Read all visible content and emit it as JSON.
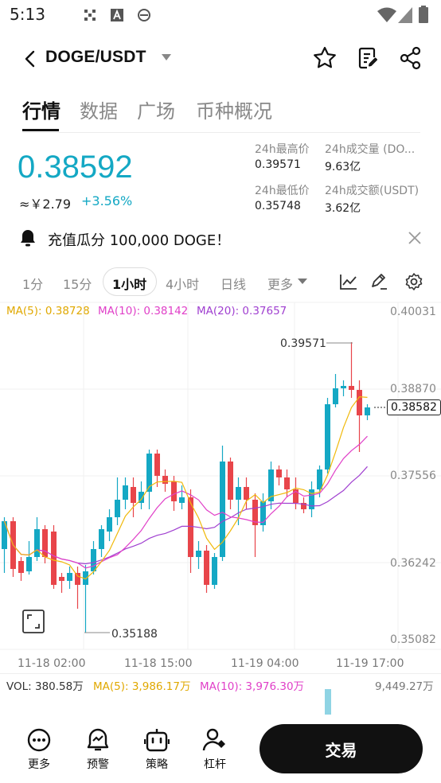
{
  "status_bar": {
    "time": "5:13"
  },
  "header": {
    "pair": "DOGE/USDT"
  },
  "tabs": [
    {
      "label": "行情"
    },
    {
      "label": "数据"
    },
    {
      "label": "广场"
    },
    {
      "label": "币种概况"
    }
  ],
  "ticker": {
    "last_price": "0.38592",
    "cny": "≈￥2.79",
    "change": "+3.56%",
    "stats": [
      {
        "label": "24h最高价",
        "value": "0.39571"
      },
      {
        "label": "24h成交量 (DO...",
        "value": "9.63亿"
      },
      {
        "label": "24h最低价",
        "value": "0.35748"
      },
      {
        "label": "24h成交额(USDT)",
        "value": "3.62亿"
      }
    ]
  },
  "banner": {
    "text": "充值瓜分 100,000 DOGE！"
  },
  "intervals": [
    {
      "label": "1分"
    },
    {
      "label": "15分"
    },
    {
      "label": "1小时",
      "selected": true
    },
    {
      "label": "4小时"
    },
    {
      "label": "日线"
    },
    {
      "label": "更多"
    }
  ],
  "indicators": {
    "ma5": "MA(5): 0.38728",
    "ma10": "MA(10): 0.38142",
    "ma20": "MA(20): 0.37657"
  },
  "chart_data": {
    "type": "candlestick",
    "y_ticks": [
      "0.40031",
      "0.38870",
      "0.37556",
      "0.36242",
      "0.35082"
    ],
    "x_ticks": [
      "11-18 02:00",
      "11-18 15:00",
      "11-19 04:00",
      "11-19 17:00"
    ],
    "high_marker": "0.39571",
    "low_marker": "0.35188",
    "current_price_tag": "0.38582",
    "colors": {
      "up": "#14a8c4",
      "down": "#e8454a",
      "ma5": "#f0b90b",
      "ma10": "#e040c8",
      "ma20": "#a040d0"
    }
  },
  "volume": {
    "vol": "VOL: 380.58万",
    "ma5": "MA(5): 3,986.17万",
    "ma10": "MA(10): 3,976.30万",
    "axis_max": "9,449.27万"
  },
  "bottom_nav": [
    {
      "label": "更多",
      "icon": "more-icon"
    },
    {
      "label": "预警",
      "icon": "alert-icon"
    },
    {
      "label": "策略",
      "icon": "bot-icon"
    },
    {
      "label": "杠杆",
      "icon": "leverage-icon"
    }
  ],
  "trade_button": {
    "label": "交易"
  }
}
